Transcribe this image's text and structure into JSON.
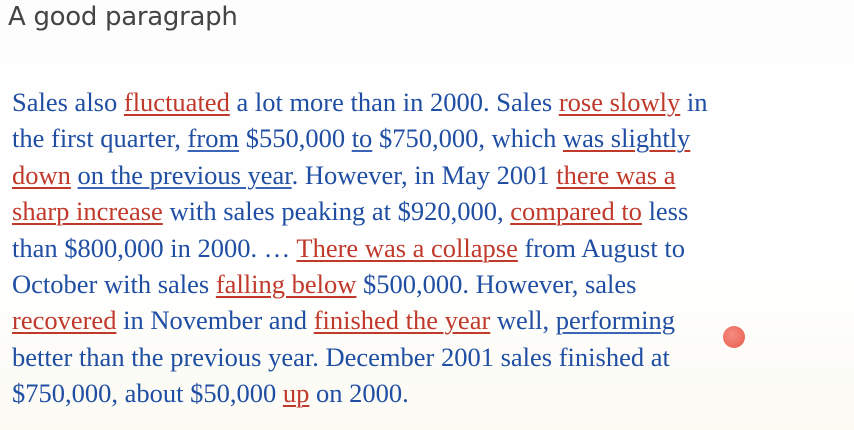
{
  "slide": {
    "title": "A good paragraph",
    "lines": [
      [
        {
          "t": "Sales also "
        },
        {
          "t": "fluctuated",
          "red": true,
          "ul": "red"
        },
        {
          "t": " a lot more than in 2000. Sales "
        },
        {
          "t": "rose slowly",
          "red": true,
          "ul": "red"
        },
        {
          "t": " in"
        }
      ],
      [
        {
          "t": "the first quarter, "
        },
        {
          "t": "from",
          "ul": "blue"
        },
        {
          "t": " $550,000 "
        },
        {
          "t": "to",
          "ul": "blue"
        },
        {
          "t": " $750,000, which "
        },
        {
          "t": "was slightly",
          "ul": "red"
        }
      ],
      [
        {
          "t": "down",
          "red": true,
          "ul": "red"
        },
        {
          "t": " "
        },
        {
          "t": "on the previous year",
          "ul": "blue"
        },
        {
          "t": ". However, in May 2001 "
        },
        {
          "t": "there was a",
          "red": true,
          "ul": "red"
        }
      ],
      [
        {
          "t": "sharp increase",
          "red": true,
          "ul": "red"
        },
        {
          "t": " with sales peaking at $920,000, "
        },
        {
          "t": "compared to",
          "red": true,
          "ul": "red"
        },
        {
          "t": " less"
        }
      ],
      [
        {
          "t": "than $800,000 in 2000. … "
        },
        {
          "t": "There was a collapse",
          "red": true,
          "ul": "red"
        },
        {
          "t": " from August to"
        }
      ],
      [
        {
          "t": "October with sales "
        },
        {
          "t": "falling below",
          "red": true,
          "ul": "red"
        },
        {
          "t": " $500,000. However, sales"
        }
      ],
      [
        {
          "t": "recovered",
          "red": true,
          "ul": "red"
        },
        {
          "t": " in November and "
        },
        {
          "t": "finished the year",
          "red": true,
          "ul": "red"
        },
        {
          "t": " well, "
        },
        {
          "t": "performing",
          "ul": "blue"
        }
      ],
      [
        {
          "t": "better than the previous year. December 2001 sales finished at"
        }
      ],
      [
        {
          "t": "$750,000, about $50,000 "
        },
        {
          "t": "up",
          "red": true,
          "ul": "red"
        },
        {
          "t": " on 2000."
        }
      ]
    ]
  }
}
